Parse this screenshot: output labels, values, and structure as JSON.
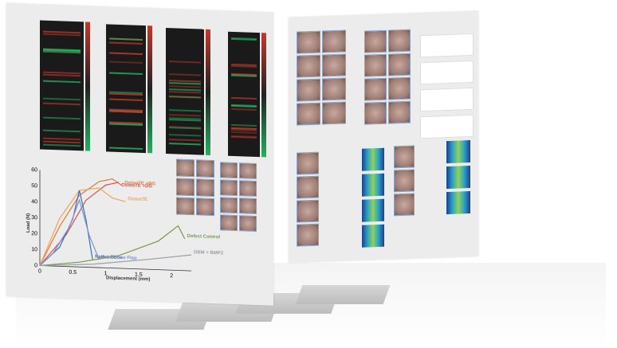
{
  "chart_data": {
    "type": "line",
    "xlabel": "Displacement (mm)",
    "ylabel": "Load (N)",
    "xlim": [
      0,
      2.3
    ],
    "ylim": [
      0,
      60
    ],
    "x_ticks": [
      "0",
      "0.5",
      "1",
      "1.5",
      "2"
    ],
    "y_ticks": [
      "0",
      "10",
      "20",
      "30",
      "40",
      "50",
      "60"
    ],
    "series": [
      {
        "name": "OsteoTE +BG",
        "color": "#e07a3f",
        "x": [
          0,
          0.3,
          0.6,
          0.9,
          1.1,
          1.25
        ],
        "y": [
          0,
          25,
          45,
          54,
          56,
          52
        ]
      },
      {
        "name": "OsteoTE +DG",
        "color": "#d9534f",
        "x": [
          0,
          0.4,
          0.7,
          1.0,
          1.2
        ],
        "y": [
          0,
          20,
          42,
          52,
          54
        ]
      },
      {
        "name": "OsteoTE",
        "color": "#f0a35e",
        "x": [
          0,
          0.3,
          0.6,
          0.9,
          1.1,
          1.3
        ],
        "y": [
          0,
          30,
          48,
          50,
          44,
          42
        ]
      },
      {
        "name": "Native Bone",
        "color": "#3a6fb0",
        "x": [
          0,
          0.3,
          0.5,
          0.6,
          0.7,
          0.8
        ],
        "y": [
          0,
          12,
          30,
          48,
          30,
          5
        ]
      },
      {
        "name": "Auto Bone Flap",
        "color": "#7e8fd6",
        "x": [
          0,
          0.2,
          0.45,
          0.6,
          0.75,
          0.9
        ],
        "y": [
          0,
          8,
          25,
          42,
          20,
          5
        ]
      },
      {
        "name": "Defect Control",
        "color": "#7a9a4a",
        "x": [
          0,
          0.6,
          1.2,
          1.8,
          2.1,
          2.2
        ],
        "y": [
          0,
          3,
          8,
          18,
          28,
          20
        ]
      },
      {
        "name": "DBM + BMP2",
        "color": "#9aa0a6",
        "x": [
          0,
          0.8,
          1.6,
          2.3
        ],
        "y": [
          0,
          2,
          6,
          10
        ]
      }
    ]
  },
  "colors": {
    "panel": "#ececec",
    "heatmap_bg": "#1a1a1a",
    "heat_red": "#c0392b",
    "heat_green": "#27ae60"
  }
}
